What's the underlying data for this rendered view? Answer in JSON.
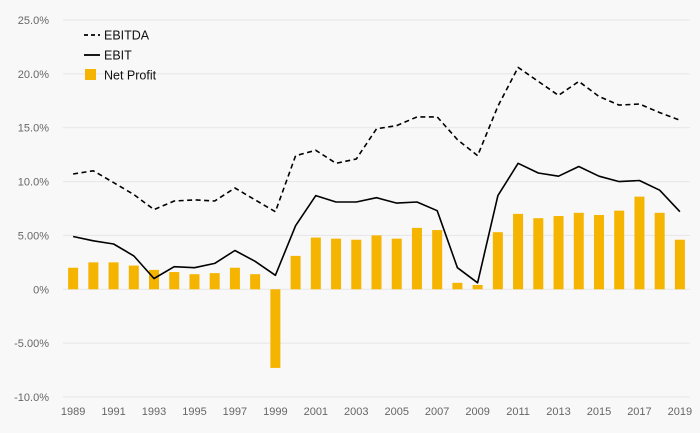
{
  "colors": {
    "background": "#f8f8f8",
    "grid": "#e6e6e6",
    "bar": "#f5b400",
    "line": "#000000",
    "tick_text": "#666666"
  },
  "chart_data": {
    "type": "bar",
    "title": "",
    "xlabel": "",
    "ylabel": "",
    "ylim": [
      -10,
      25
    ],
    "y_ticks": [
      -10,
      -5,
      0,
      5,
      10,
      15,
      20,
      25
    ],
    "y_tick_labels": [
      "-10.0%",
      "-5.00%",
      "0%",
      "5.00%",
      "10.0%",
      "15.0%",
      "20.0%",
      "25.0%"
    ],
    "categories": [
      1989,
      1990,
      1991,
      1992,
      1993,
      1994,
      1995,
      1996,
      1997,
      1998,
      1999,
      2000,
      2001,
      2002,
      2003,
      2004,
      2005,
      2006,
      2007,
      2008,
      2009,
      2010,
      2011,
      2012,
      2013,
      2014,
      2015,
      2016,
      2017,
      2018,
      2019
    ],
    "x_tick_labels": [
      "1989",
      "1991",
      "1993",
      "1995",
      "1997",
      "1999",
      "2001",
      "2003",
      "2005",
      "2007",
      "2009",
      "2011",
      "2013",
      "2015",
      "2017",
      "2019"
    ],
    "grid": true,
    "legend_position": "top-left",
    "series": [
      {
        "name": "EBITDA",
        "kind": "line",
        "style": "dashed",
        "values": [
          10.7,
          11.0,
          9.9,
          8.8,
          7.4,
          8.2,
          8.3,
          8.2,
          9.4,
          8.3,
          7.2,
          12.4,
          12.9,
          11.7,
          12.1,
          14.9,
          15.2,
          16.0,
          16.0,
          13.9,
          12.4,
          17.0,
          20.6,
          19.3,
          18.0,
          19.3,
          17.9,
          17.1,
          17.2,
          16.4,
          15.7
        ]
      },
      {
        "name": "EBIT",
        "kind": "line",
        "style": "solid",
        "values": [
          4.9,
          4.5,
          4.2,
          3.1,
          1.0,
          2.1,
          2.0,
          2.4,
          3.6,
          2.6,
          1.3,
          5.9,
          8.7,
          8.1,
          8.1,
          8.5,
          8.0,
          8.1,
          7.3,
          2.0,
          0.6,
          8.7,
          11.7,
          10.8,
          10.5,
          11.4,
          10.5,
          10.0,
          10.1,
          9.2,
          7.2
        ]
      },
      {
        "name": "Net Profit",
        "kind": "bar",
        "values": [
          2.0,
          2.5,
          2.5,
          2.2,
          1.8,
          1.6,
          1.4,
          1.5,
          2.0,
          1.4,
          -7.3,
          3.1,
          4.8,
          4.7,
          4.6,
          5.0,
          4.7,
          5.7,
          5.5,
          0.6,
          0.4,
          5.3,
          7.0,
          6.6,
          6.8,
          7.1,
          6.9,
          7.3,
          8.6,
          7.1,
          4.6
        ]
      }
    ]
  }
}
